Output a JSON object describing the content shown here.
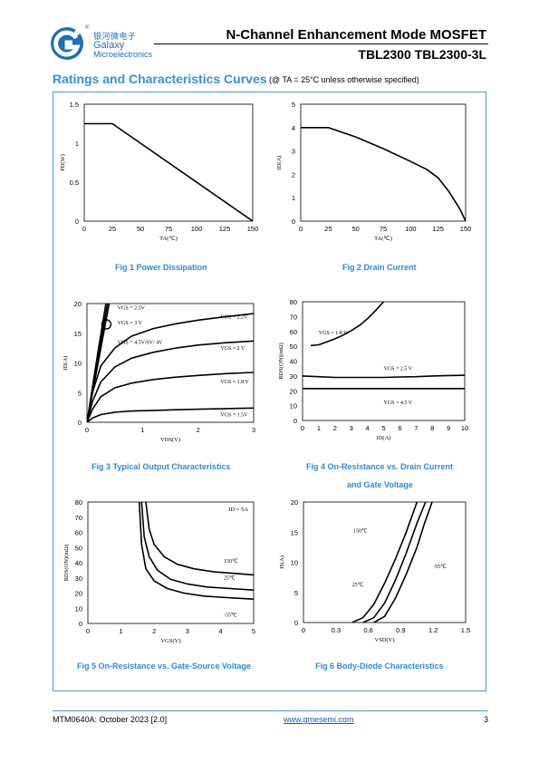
{
  "header": {
    "brand_cn": "银河微电子",
    "brand_en1": "Galaxy",
    "brand_en2": "Microelectronics",
    "registered": "®",
    "title": "N-Channel Enhancement Mode MOSFET",
    "model": "TBL2300  TBL2300-3L",
    "colors": {
      "brand": "#1f6fb5",
      "accent": "#3a8fd8"
    }
  },
  "section": {
    "title": "Ratings and Characteristics Curves",
    "note": "(@ TA = 25°C unless otherwise specified)"
  },
  "footer": {
    "doc": "MTM0640A: October 2023 [2.0]",
    "url": "www.gmesemi.com",
    "page": "3"
  },
  "chart_data": [
    {
      "id": "fig1",
      "type": "line",
      "caption": "Fig 1    Power Dissipation",
      "xlabel": "TA(℃)",
      "ylabel": "PD(W)",
      "xlim": [
        0,
        150
      ],
      "ylim": [
        0,
        1.5
      ],
      "xticks": [
        "0",
        "25",
        "50",
        "75",
        "100",
        "125",
        "150"
      ],
      "yticks": [
        "0",
        "0.5",
        "1",
        "1.5"
      ],
      "series": [
        {
          "x": [
            0,
            25,
            150
          ],
          "y": [
            1.25,
            1.25,
            0
          ]
        }
      ]
    },
    {
      "id": "fig2",
      "type": "line",
      "caption": "Fig 2    Drain Current",
      "xlabel": "TA(℃)",
      "ylabel": "ID(A)",
      "xlim": [
        0,
        150
      ],
      "ylim": [
        0,
        5
      ],
      "xticks": [
        "0",
        "25",
        "50",
        "75",
        "100",
        "125",
        "150"
      ],
      "yticks": [
        "0",
        "1",
        "2",
        "3",
        "4",
        "5"
      ],
      "series": [
        {
          "x": [
            0,
            25,
            50,
            75,
            100,
            115,
            125,
            135,
            145,
            150
          ],
          "y": [
            4,
            4,
            3.6,
            3.1,
            2.55,
            2.2,
            1.85,
            1.25,
            0.5,
            0
          ]
        }
      ]
    },
    {
      "id": "fig3",
      "type": "line",
      "caption": "Fig 3    Typical Output Characteristics",
      "xlabel": "VDS(V)",
      "ylabel": "ID(A)",
      "xlim": [
        0,
        3
      ],
      "ylim": [
        0,
        20
      ],
      "xticks": [
        "0",
        "1",
        "2",
        "3"
      ],
      "yticks": [
        "0",
        "5",
        "10",
        "15",
        "20"
      ],
      "series": [
        {
          "name": "VGS = 2.5V",
          "x": [
            0,
            0.2,
            0.4
          ],
          "y": [
            0,
            10,
            20
          ]
        },
        {
          "name": "VGS = 3 V",
          "x": [
            0,
            0.2,
            0.37
          ],
          "y": [
            0,
            11,
            20
          ]
        },
        {
          "name": "VGS = 4.5V/6V/ 4V",
          "x": [
            0,
            0.2,
            0.34
          ],
          "y": [
            0,
            12,
            20
          ]
        },
        {
          "name": "VGS = 2.2V",
          "x": [
            0,
            0.1,
            0.25,
            0.5,
            0.8,
            1.2,
            1.6,
            2.0,
            2.5,
            3.0
          ],
          "y": [
            0,
            5,
            9.5,
            12.5,
            14.5,
            15.8,
            16.6,
            17.2,
            17.8,
            18.3
          ]
        },
        {
          "name": "VGS = 2 V",
          "x": [
            0,
            0.1,
            0.25,
            0.5,
            0.8,
            1.2,
            1.6,
            2.0,
            2.5,
            3.0
          ],
          "y": [
            0,
            3.5,
            6.8,
            9.3,
            10.8,
            11.8,
            12.5,
            13.0,
            13.4,
            13.7
          ]
        },
        {
          "name": "VGS = 1.8 V",
          "x": [
            0,
            0.1,
            0.25,
            0.5,
            0.8,
            1.2,
            1.6,
            2.0,
            2.5,
            3.0
          ],
          "y": [
            0,
            2.2,
            4.3,
            5.8,
            6.6,
            7.2,
            7.6,
            7.9,
            8.2,
            8.4
          ]
        },
        {
          "name": "VGS = 1.5V",
          "x": [
            0,
            0.1,
            0.25,
            0.5,
            0.8,
            1.2,
            1.6,
            2.0,
            2.5,
            3.0
          ],
          "y": [
            0,
            0.7,
            1.3,
            1.7,
            1.9,
            2.0,
            2.1,
            2.2,
            2.3,
            2.4
          ]
        }
      ]
    },
    {
      "id": "fig4",
      "type": "line",
      "caption": "Fig 4    On-Resistance vs. Drain Current",
      "caption2": "and Gate Voltage",
      "xlabel": "ID(A)",
      "ylabel": "RDS(ON)(mΩ)",
      "xlim": [
        0,
        10
      ],
      "ylim": [
        0,
        80
      ],
      "xticks": [
        "0",
        "1",
        "2",
        "3",
        "4",
        "5",
        "6",
        "7",
        "8",
        "9",
        "10"
      ],
      "yticks": [
        "0",
        "10",
        "20",
        "30",
        "40",
        "50",
        "60",
        "70",
        "80"
      ],
      "series": [
        {
          "name": "VGS = 1.8 V",
          "x": [
            0.5,
            1,
            1.5,
            2,
            2.5,
            3,
            3.5,
            4,
            4.5,
            5
          ],
          "y": [
            50.5,
            51,
            53,
            55,
            57.5,
            60.5,
            64,
            68.5,
            74,
            80
          ]
        },
        {
          "name": "VGS = 2.5 V",
          "x": [
            0,
            1,
            2,
            3,
            4,
            5,
            6,
            7,
            8,
            9,
            10
          ],
          "y": [
            30,
            29.5,
            29,
            29,
            29,
            29,
            29.3,
            29.5,
            30,
            30.3,
            30.5
          ]
        },
        {
          "name": "VGS = 4.5 V",
          "x": [
            0,
            1,
            2,
            3,
            4,
            5,
            6,
            7,
            8,
            9,
            10
          ],
          "y": [
            21.5,
            21.5,
            21.5,
            21.5,
            21.5,
            21.5,
            21.5,
            21.5,
            21.5,
            21.5,
            21.5
          ]
        }
      ]
    },
    {
      "id": "fig5",
      "type": "line",
      "caption": "Fig 5    On-Resistance vs. Gate-Source Voltage",
      "xlabel": "VGS(V)",
      "ylabel": "RDS(ON)(mΩ)",
      "annotation": "ID = 5A",
      "xlim": [
        0,
        5
      ],
      "ylim": [
        0,
        80
      ],
      "xticks": [
        "0",
        "1",
        "2",
        "3",
        "4",
        "5"
      ],
      "yticks": [
        "0",
        "10",
        "20",
        "30",
        "40",
        "50",
        "60",
        "70",
        "80"
      ],
      "series": [
        {
          "name": "150℃",
          "x": [
            1.75,
            1.85,
            2.0,
            2.3,
            2.7,
            3.2,
            3.8,
            4.4,
            5.0
          ],
          "y": [
            80,
            62,
            52,
            44,
            39,
            36,
            34,
            33,
            32
          ]
        },
        {
          "name": "25℃",
          "x": [
            1.62,
            1.7,
            1.85,
            2.1,
            2.5,
            3.0,
            3.6,
            4.3,
            5.0
          ],
          "y": [
            80,
            57,
            44,
            35,
            29,
            26,
            24,
            23,
            22
          ]
        },
        {
          "name": "-55℃",
          "x": [
            1.55,
            1.62,
            1.75,
            2.0,
            2.4,
            2.9,
            3.5,
            4.2,
            5.0
          ],
          "y": [
            80,
            52,
            36,
            28,
            23,
            20,
            18,
            17,
            16
          ]
        }
      ]
    },
    {
      "id": "fig6",
      "type": "line",
      "caption": "Fig 6    Body-Diode Characteristics",
      "xlabel": "VSD(V)",
      "ylabel": "IS(A)",
      "xlim": [
        0,
        1.5
      ],
      "ylim": [
        0,
        20
      ],
      "xticks": [
        "0",
        "0.3",
        "0.6",
        "0.9",
        "1.2",
        "1.5"
      ],
      "yticks": [
        "0",
        "5",
        "10",
        "15",
        "20"
      ],
      "series": [
        {
          "name": "150℃",
          "x": [
            0.45,
            0.55,
            0.65,
            0.75,
            0.85,
            0.95,
            1.05
          ],
          "y": [
            0,
            0.8,
            3.0,
            6.5,
            10.5,
            15.0,
            20
          ]
        },
        {
          "name": "25℃",
          "x": [
            0.55,
            0.65,
            0.75,
            0.85,
            0.95,
            1.05,
            1.13
          ],
          "y": [
            0,
            0.8,
            3.2,
            7.0,
            11.5,
            16.5,
            20
          ]
        },
        {
          "name": "-55℃",
          "x": [
            0.65,
            0.75,
            0.85,
            0.95,
            1.05,
            1.12,
            1.19
          ],
          "y": [
            0,
            1.0,
            4.0,
            8.0,
            12.5,
            16.5,
            20
          ]
        }
      ]
    }
  ]
}
